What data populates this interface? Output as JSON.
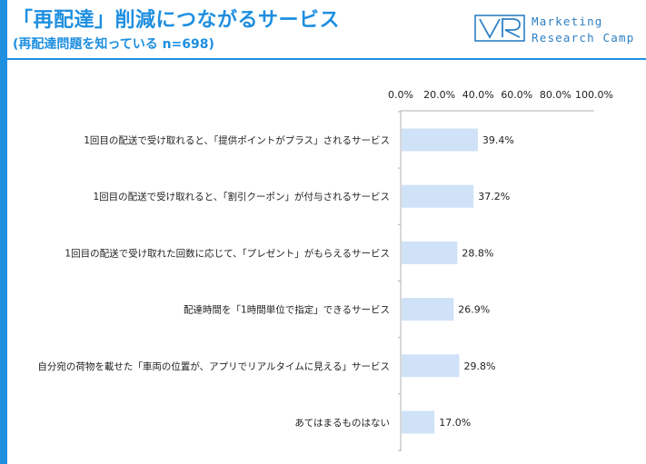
{
  "header": {
    "title": "「再配達」削減につながるサービス",
    "subtitle": "(再配達問題を知っている n=698)",
    "logo_mark": "VR",
    "logo_line1": "Marketing",
    "logo_line2": "Research Camp"
  },
  "colors": {
    "accent": "#1f8fe0",
    "bar": "#cfe2f7"
  },
  "chart_data": {
    "type": "bar",
    "orientation": "horizontal",
    "categories": [
      "1回目の配送で受け取れると、「提供ポイントがプラス」されるサービス",
      "1回目の配送で受け取れると、「割引クーポン」が付与されるサービス",
      "1回目の配送で受け取れた回数に応じて、「プレゼント」がもらえるサービス",
      "配達時間を「1時間単位で指定」できるサービス",
      "自分宛の荷物を載せた「車両の位置が、アプリでリアルタイムに見える」サービス",
      "あてはまるものはない"
    ],
    "values": [
      39.4,
      37.2,
      28.8,
      26.9,
      29.8,
      17.0
    ],
    "value_labels": [
      "39.4%",
      "37.2%",
      "28.8%",
      "26.9%",
      "29.8%",
      "17.0%"
    ],
    "xlim": [
      0,
      100
    ],
    "ticks": [
      "0.0%",
      "20.0%",
      "40.0%",
      "60.0%",
      "80.0%",
      "100.0%"
    ],
    "tick_values": [
      0,
      20,
      40,
      60,
      80,
      100
    ],
    "axis_position": "top",
    "grid": false,
    "legend": "none"
  }
}
